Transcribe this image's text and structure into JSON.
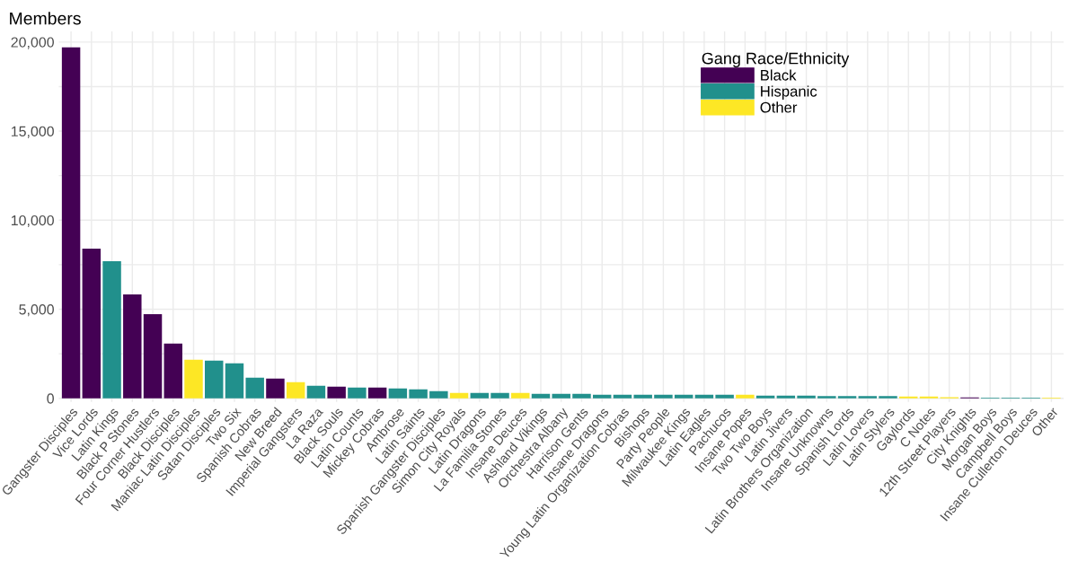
{
  "chart_data": {
    "type": "bar",
    "title": "Members",
    "categories": [
      "Gangster Disciples",
      "Vice Lords",
      "Latin Kings",
      "Black P Stones",
      "Four Corner Hustlers",
      "Black Disciples",
      "Maniac Latin Disciples",
      "Satan Disciples",
      "Two Six",
      "Spanish Cobras",
      "New Breed",
      "Imperial Gangsters",
      "La Raza",
      "Black Souls",
      "Latin Counts",
      "Mickey Cobras",
      "Ambrose",
      "Latin Saints",
      "Spanish Gangster Disciples",
      "Simon City Royals",
      "Latin Dragons",
      "La Familia Stones",
      "Insane Deuces",
      "Ashland Vikings",
      "Orchestra Albany",
      "Harrison Gents",
      "Insane Dragons",
      "Young Latin Organization Cobras",
      "Bishops",
      "Party People",
      "Milwaukee Kings",
      "Latin Eagles",
      "Pachucos",
      "Insane Popes",
      "Two Two Boys",
      "Latin Jivers",
      "Latin Brothers Organization",
      "Insane Unknowns",
      "Spanish Lords",
      "Latin Lovers",
      "Latin Stylers",
      "Gaylords",
      "C Notes",
      "12th Street Players",
      "City Knights",
      "Morgan Boys",
      "Campbell Boys",
      "Insane Cullerton Deuces",
      "Other"
    ],
    "series": [
      {
        "name": "Black",
        "color": "#440154",
        "values": [
          19700,
          8400,
          null,
          5830,
          4720,
          3070,
          null,
          null,
          null,
          null,
          1110,
          null,
          null,
          650,
          null,
          600,
          null,
          null,
          null,
          null,
          null,
          null,
          null,
          null,
          null,
          null,
          null,
          null,
          null,
          null,
          null,
          null,
          null,
          null,
          null,
          null,
          null,
          null,
          null,
          null,
          null,
          null,
          null,
          null,
          50,
          null,
          null,
          null,
          null
        ]
      },
      {
        "name": "Hispanic",
        "color": "#21908c",
        "values": [
          null,
          null,
          7700,
          null,
          null,
          null,
          null,
          2110,
          1960,
          1160,
          null,
          null,
          700,
          null,
          600,
          null,
          550,
          500,
          400,
          null,
          300,
          300,
          null,
          250,
          250,
          250,
          200,
          200,
          200,
          200,
          200,
          200,
          200,
          null,
          150,
          150,
          150,
          120,
          120,
          120,
          120,
          null,
          null,
          null,
          null,
          30,
          30,
          30,
          null
        ]
      },
      {
        "name": "Other",
        "color": "#fde725",
        "values": [
          null,
          null,
          null,
          null,
          null,
          null,
          2160,
          null,
          null,
          null,
          null,
          900,
          null,
          null,
          null,
          null,
          null,
          null,
          null,
          300,
          null,
          null,
          300,
          null,
          null,
          null,
          null,
          null,
          null,
          null,
          null,
          null,
          null,
          200,
          null,
          null,
          null,
          null,
          null,
          null,
          null,
          100,
          100,
          60,
          null,
          null,
          null,
          null,
          40
        ]
      }
    ],
    "ylim": [
      -200,
      20600
    ],
    "yticks": [
      {
        "value": 0,
        "label": "0"
      },
      {
        "value": 2500,
        "label": null
      },
      {
        "value": 5000,
        "label": "5,000"
      },
      {
        "value": 7500,
        "label": null
      },
      {
        "value": 10000,
        "label": "10,000"
      },
      {
        "value": 12500,
        "label": null
      },
      {
        "value": 15000,
        "label": "15,000"
      },
      {
        "value": 17500,
        "label": null
      },
      {
        "value": 20000,
        "label": "20,000"
      }
    ],
    "legend_title": "Gang Race/Ethnicity",
    "legend": "top right",
    "grid": true
  }
}
